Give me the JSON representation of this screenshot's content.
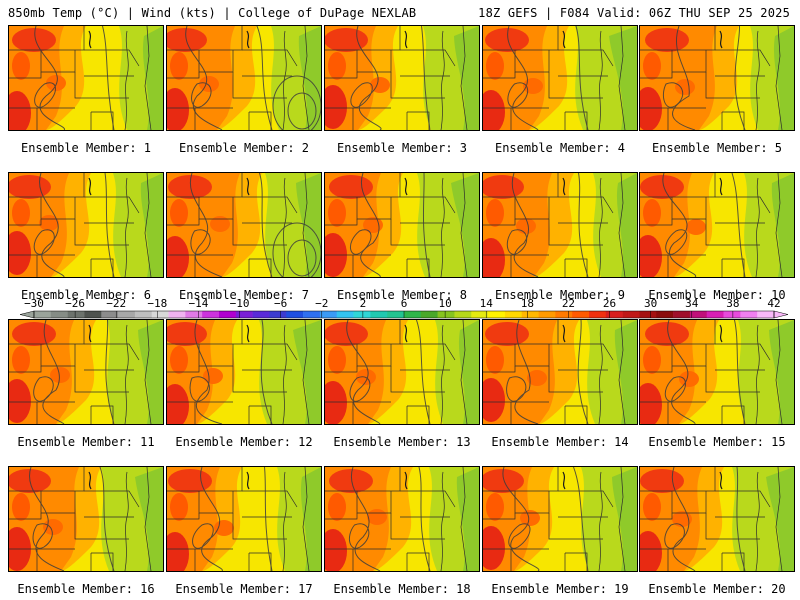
{
  "header": {
    "title_left": "850mb Temp (°C) | Wind (kts) | College of DuPage NEXLAB",
    "title_right": "18Z GEFS | F084 Valid: 06Z THU SEP 25 2025"
  },
  "members": [
    {
      "label": "Ensemble Member: 1"
    },
    {
      "label": "Ensemble Member: 2"
    },
    {
      "label": "Ensemble Member: 3"
    },
    {
      "label": "Ensemble Member: 4"
    },
    {
      "label": "Ensemble Member: 5"
    },
    {
      "label": "Ensemble Member: 6"
    },
    {
      "label": "Ensemble Member: 7"
    },
    {
      "label": "Ensemble Member: 8"
    },
    {
      "label": "Ensemble Member: 9"
    },
    {
      "label": "Ensemble Member: 10"
    },
    {
      "label": "Ensemble Member: 11"
    },
    {
      "label": "Ensemble Member: 12"
    },
    {
      "label": "Ensemble Member: 13"
    },
    {
      "label": "Ensemble Member: 14"
    },
    {
      "label": "Ensemble Member: 15"
    },
    {
      "label": "Ensemble Member: 16"
    },
    {
      "label": "Ensemble Member: 17"
    },
    {
      "label": "Ensemble Member: 18"
    },
    {
      "label": "Ensemble Member: 19"
    },
    {
      "label": "Ensemble Member: 20"
    }
  ],
  "colorbar": {
    "labels": [
      "−30",
      "−26",
      "−22",
      "−18",
      "−14",
      "−10",
      "−6",
      "−2",
      "2",
      "6",
      "10",
      "14",
      "18",
      "22",
      "26",
      "30",
      "34",
      "38",
      "42"
    ],
    "colors": [
      "#9aa39a",
      "#858c85",
      "#6c726c",
      "#4e524e",
      "#8c8c8c",
      "#a8a8a8",
      "#bfbfbf",
      "#d8d8d8",
      "#f0b3f0",
      "#e07ae6",
      "#cc33dd",
      "#b000d0",
      "#7a1fd6",
      "#5a2ad8",
      "#3c3cd0",
      "#1f4fe0",
      "#2f6ff0",
      "#3a9bf5",
      "#33c3f0",
      "#2fd7d7",
      "#20c9b0",
      "#23c490",
      "#2fb64a",
      "#4aa82a",
      "#86c41f",
      "#b6d81a",
      "#e4eb10",
      "#fff200",
      "#ffd800",
      "#ffb800",
      "#ff9a00",
      "#ff7a00",
      "#ff5a00",
      "#f03010",
      "#d81e1e",
      "#c01818",
      "#a51212",
      "#8a0c0c",
      "#a0102a",
      "#c0107a",
      "#d81fb4",
      "#e84adc",
      "#f07ff0",
      "#f8b8f8"
    ]
  }
}
